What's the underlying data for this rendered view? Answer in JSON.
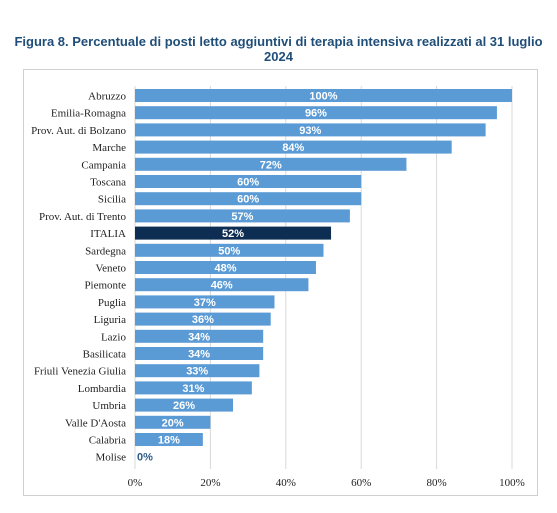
{
  "title": "Figura 8. Percentuale di posti letto aggiuntivi di terapia intensiva realizzati al 31 luglio 2024",
  "colors": {
    "bar": "#5b9bd5",
    "highlight": "#0d2d52",
    "grid": "#d9d9d9",
    "title": "#1f4e79"
  },
  "chart_data": {
    "type": "bar",
    "orientation": "horizontal",
    "title": "Figura 8. Percentuale di posti letto aggiuntivi di terapia intensiva realizzati al 31 luglio 2024",
    "categories": [
      "Abruzzo",
      "Emilia-Romagna",
      "Prov. Aut. di Bolzano",
      "Marche",
      "Campania",
      "Toscana",
      "Sicilia",
      "Prov. Aut. di Trento",
      "ITALIA",
      "Sardegna",
      "Veneto",
      "Piemonte",
      "Puglia",
      "Liguria",
      "Lazio",
      "Basilicata",
      "Friuli Venezia Giulia",
      "Lombardia",
      "Umbria",
      "Valle D'Aosta",
      "Calabria",
      "Molise"
    ],
    "values": [
      100,
      96,
      93,
      84,
      72,
      60,
      60,
      57,
      52,
      50,
      48,
      46,
      37,
      36,
      34,
      34,
      33,
      31,
      26,
      20,
      18,
      0
    ],
    "value_labels": [
      "100%",
      "96%",
      "93%",
      "84%",
      "72%",
      "60%",
      "60%",
      "57%",
      "52%",
      "50%",
      "48%",
      "46%",
      "37%",
      "36%",
      "34%",
      "34%",
      "33%",
      "31%",
      "26%",
      "20%",
      "18%",
      "0%"
    ],
    "highlight": "ITALIA",
    "xlim": [
      0,
      100
    ],
    "x_ticks": [
      0,
      20,
      40,
      60,
      80,
      100
    ],
    "x_tick_labels": [
      "0%",
      "20%",
      "40%",
      "60%",
      "80%",
      "100%"
    ],
    "grid": true,
    "legend": "none"
  }
}
